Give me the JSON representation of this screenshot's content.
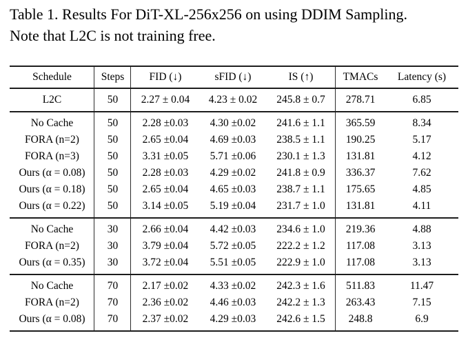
{
  "caption": {
    "line1": "Table 1. Results For DiT-XL-256x256 on using DDIM Sampling.",
    "line2": "Note that L2C is not training free."
  },
  "colors": {
    "background": "#ffffff",
    "text": "#000000",
    "rule": "#1c1c1c"
  },
  "table": {
    "columns": [
      "Schedule",
      "Steps",
      "FID (↓)",
      "sFID (↓)",
      "IS (↑)",
      "TMACs",
      "Latency (s)"
    ],
    "sections": [
      {
        "rows": [
          [
            "L2C",
            "50",
            "2.27 ± 0.04",
            "4.23 ± 0.02",
            "245.8 ± 0.7",
            "278.71",
            "6.85"
          ]
        ]
      },
      {
        "rows": [
          [
            "No Cache",
            "50",
            "2.28 ±0.03",
            "4.30 ±0.02",
            "241.6 ± 1.1",
            "365.59",
            "8.34"
          ],
          [
            "FORA (n=2)",
            "50",
            "2.65 ±0.04",
            "4.69 ±0.03",
            "238.5 ± 1.1",
            "190.25",
            "5.17"
          ],
          [
            "FORA (n=3)",
            "50",
            "3.31 ±0.05",
            "5.71 ±0.06",
            "230.1 ± 1.3",
            "131.81",
            "4.12"
          ],
          [
            "Ours (α = 0.08)",
            "50",
            "2.28 ±0.03",
            "4.29 ±0.02",
            "241.8 ± 0.9",
            "336.37",
            "7.62"
          ],
          [
            "Ours (α = 0.18)",
            "50",
            "2.65 ±0.04",
            "4.65 ±0.03",
            "238.7 ± 1.1",
            "175.65",
            "4.85"
          ],
          [
            "Ours (α = 0.22)",
            "50",
            "3.14 ±0.05",
            "5.19 ±0.04",
            "231.7 ± 1.0",
            "131.81",
            "4.11"
          ]
        ]
      },
      {
        "rows": [
          [
            "No Cache",
            "30",
            "2.66 ±0.04",
            "4.42 ±0.03",
            "234.6 ± 1.0",
            "219.36",
            "4.88"
          ],
          [
            "FORA (n=2)",
            "30",
            "3.79 ±0.04",
            "5.72 ±0.05",
            "222.2 ± 1.2",
            "117.08",
            "3.13"
          ],
          [
            "Ours (α = 0.35)",
            "30",
            "3.72 ±0.04",
            "5.51 ±0.05",
            "222.9 ± 1.0",
            "117.08",
            "3.13"
          ]
        ]
      },
      {
        "rows": [
          [
            "No Cache",
            "70",
            "2.17 ±0.02",
            "4.33 ±0.02",
            "242.3 ± 1.6",
            "511.83",
            "11.47"
          ],
          [
            "FORA (n=2)",
            "70",
            "2.36 ±0.02",
            "4.46 ±0.03",
            "242.2 ± 1.3",
            "263.43",
            "7.15"
          ],
          [
            "Ours (α = 0.08)",
            "70",
            "2.37 ±0.02",
            "4.29 ±0.03",
            "242.6 ± 1.5",
            "248.8",
            "6.9"
          ]
        ]
      }
    ]
  }
}
